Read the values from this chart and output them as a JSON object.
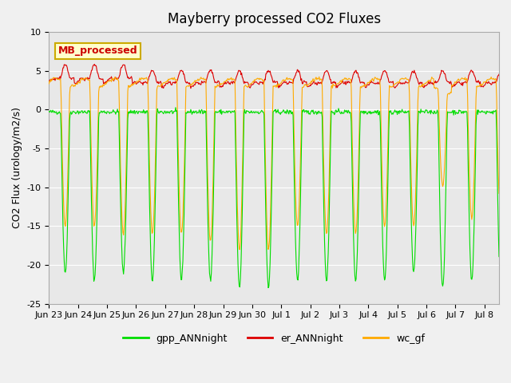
{
  "title": "Mayberry processed CO2 Fluxes",
  "ylabel": "CO2 Flux (urology/m2/s)",
  "ylim": [
    -25,
    10
  ],
  "yticks": [
    -25,
    -20,
    -15,
    -10,
    -5,
    0,
    5,
    10
  ],
  "xlim_days": [
    0,
    15.5
  ],
  "background_color": "#f0f0f0",
  "plot_bg_color": "#e8e8e8",
  "legend_label": "MB_processed",
  "legend_box_color": "#ffffcc",
  "legend_box_edge": "#ccaa00",
  "legend_text_color": "#cc0000",
  "line_gpp_color": "#00dd00",
  "line_er_color": "#dd0000",
  "line_wc_color": "#ffaa00",
  "x_tick_labels": [
    "Jun 23",
    "Jun 24",
    "Jun 25",
    "Jun 26",
    "Jun 27",
    "Jun 28",
    "Jun 29",
    "Jun 30",
    "Jul 1",
    "Jul 2",
    "Jul 3",
    "Jul 4",
    "Jul 5",
    "Jul 6",
    "Jul 7",
    "Jul 8"
  ],
  "n_days": 16
}
